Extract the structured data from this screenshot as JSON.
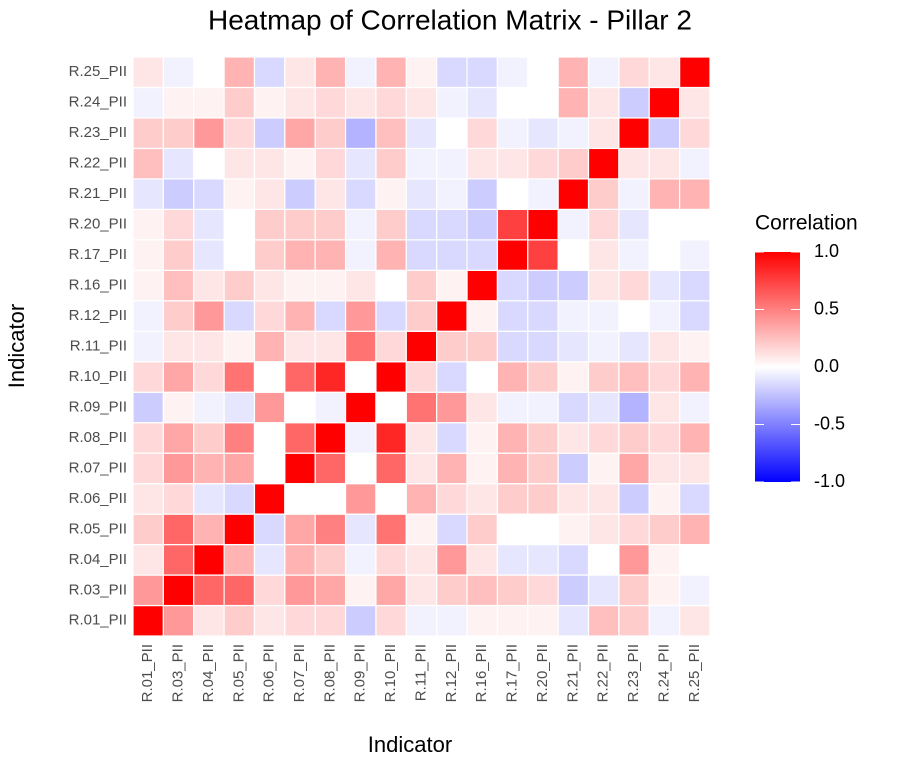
{
  "chart_data": {
    "type": "heatmap",
    "title": "Heatmap of Correlation Matrix - Pillar 2",
    "x_label": "Indicator",
    "y_label": "Indicator",
    "categories": [
      "R.01_PII",
      "R.03_PII",
      "R.04_PII",
      "R.05_PII",
      "R.06_PII",
      "R.07_PII",
      "R.08_PII",
      "R.09_PII",
      "R.10_PII",
      "R.11_PII",
      "R.12_PII",
      "R.16_PII",
      "R.17_PII",
      "R.20_PII",
      "R.21_PII",
      "R.22_PII",
      "R.23_PII",
      "R.24_PII",
      "R.25_PII"
    ],
    "values": [
      [
        1,
        0.4,
        0.1,
        0.2,
        0.1,
        0.15,
        0.15,
        -0.2,
        0.15,
        -0.05,
        -0.05,
        0.05,
        0.05,
        0.05,
        -0.1,
        0.25,
        0.2,
        -0.05,
        0.1
      ],
      [
        0.4,
        1,
        0.6,
        0.6,
        0.15,
        0.4,
        0.35,
        0.05,
        0.35,
        0.1,
        0.2,
        0.25,
        0.2,
        0.15,
        -0.2,
        -0.1,
        0.2,
        0.05,
        -0.05
      ],
      [
        0.1,
        0.6,
        1,
        0.3,
        -0.1,
        0.3,
        0.2,
        -0.05,
        0.15,
        0.1,
        0.4,
        0.1,
        -0.1,
        -0.1,
        -0.15,
        0,
        0.4,
        0.05,
        0
      ],
      [
        0.2,
        0.6,
        0.3,
        1,
        -0.15,
        0.35,
        0.5,
        -0.1,
        0.55,
        0.05,
        -0.15,
        0.2,
        0,
        0,
        0.05,
        0.1,
        0.15,
        0.2,
        0.3
      ],
      [
        0.1,
        0.15,
        -0.1,
        -0.15,
        1,
        0,
        0,
        0.4,
        0,
        0.3,
        0.15,
        0.1,
        0.2,
        0.2,
        0.1,
        0.1,
        -0.2,
        0.05,
        -0.15
      ],
      [
        0.15,
        0.4,
        0.3,
        0.35,
        0,
        1,
        0.6,
        0,
        0.6,
        0.1,
        0.3,
        0.05,
        0.3,
        0.2,
        -0.2,
        0.05,
        0.35,
        0.1,
        0.1
      ],
      [
        0.15,
        0.35,
        0.2,
        0.5,
        0,
        0.6,
        1,
        -0.05,
        0.85,
        0.1,
        -0.15,
        0.05,
        0.3,
        0.2,
        0.1,
        0.15,
        0.2,
        0.15,
        0.3
      ],
      [
        -0.2,
        0.05,
        -0.05,
        -0.1,
        0.4,
        0,
        -0.05,
        1,
        0,
        0.55,
        0.4,
        0.1,
        -0.05,
        -0.05,
        -0.15,
        -0.1,
        -0.3,
        0.1,
        -0.05
      ],
      [
        0.15,
        0.35,
        0.15,
        0.55,
        0,
        0.6,
        0.85,
        0,
        1,
        0.15,
        -0.15,
        0,
        0.3,
        0.2,
        0.05,
        0.2,
        0.25,
        0.15,
        0.3
      ],
      [
        -0.05,
        0.1,
        0.1,
        0.05,
        0.3,
        0.1,
        0.1,
        0.55,
        0.15,
        1,
        0.2,
        0.2,
        -0.15,
        -0.15,
        -0.1,
        -0.05,
        -0.1,
        0.1,
        0.05
      ],
      [
        -0.05,
        0.2,
        0.4,
        -0.15,
        0.15,
        0.3,
        -0.15,
        0.4,
        -0.15,
        0.2,
        1,
        0.05,
        -0.15,
        -0.15,
        -0.05,
        -0.05,
        0,
        -0.05,
        -0.15
      ],
      [
        0.05,
        0.25,
        0.1,
        0.2,
        0.1,
        0.05,
        0.05,
        0.1,
        0,
        0.2,
        0.05,
        1,
        -0.15,
        -0.2,
        -0.2,
        0.1,
        0.15,
        -0.1,
        -0.15
      ],
      [
        0.05,
        0.2,
        -0.1,
        0,
        0.2,
        0.3,
        0.3,
        -0.05,
        0.3,
        -0.15,
        -0.15,
        -0.15,
        1,
        0.75,
        0,
        0.1,
        -0.05,
        0,
        -0.05
      ],
      [
        0.05,
        0.15,
        -0.1,
        0,
        0.2,
        0.2,
        0.2,
        -0.05,
        0.2,
        -0.15,
        -0.15,
        -0.2,
        0.75,
        1,
        -0.05,
        0.15,
        -0.1,
        0,
        0
      ],
      [
        -0.1,
        -0.2,
        -0.15,
        0.05,
        0.1,
        -0.2,
        0.1,
        -0.15,
        0.05,
        -0.1,
        -0.05,
        -0.2,
        0,
        -0.05,
        1,
        0.2,
        -0.05,
        0.3,
        0.3
      ],
      [
        0.25,
        -0.1,
        0,
        0.1,
        0.1,
        0.05,
        0.15,
        -0.1,
        0.2,
        -0.05,
        -0.05,
        0.1,
        0.1,
        0.15,
        0.2,
        1,
        0.1,
        0.1,
        -0.05
      ],
      [
        0.2,
        0.2,
        0.4,
        0.15,
        -0.2,
        0.35,
        0.2,
        -0.3,
        0.25,
        -0.1,
        0,
        0.15,
        -0.05,
        -0.1,
        -0.05,
        0.1,
        1,
        -0.2,
        0.15
      ],
      [
        -0.05,
        0.05,
        0.05,
        0.2,
        0.05,
        0.1,
        0.15,
        0.1,
        0.15,
        0.1,
        -0.05,
        -0.1,
        0,
        0,
        0.3,
        0.1,
        -0.2,
        1,
        0.1
      ],
      [
        0.1,
        -0.05,
        0,
        0.3,
        -0.15,
        0.1,
        0.3,
        -0.05,
        0.3,
        0.05,
        -0.15,
        -0.15,
        -0.05,
        0,
        0.3,
        -0.05,
        0.15,
        0.1,
        1
      ]
    ],
    "legend_title": "Correlation",
    "colors": {
      "low": "#0000ff",
      "mid": "#ffffff",
      "high": "#ff0000"
    },
    "clim": [
      -1,
      1
    ],
    "cticks": [
      {
        "value": 1,
        "label": "1.0"
      },
      0.5,
      {
        "value": 0,
        "label": "0.0"
      },
      -0.5,
      {
        "value": -1,
        "label": "-1.0"
      }
    ]
  }
}
